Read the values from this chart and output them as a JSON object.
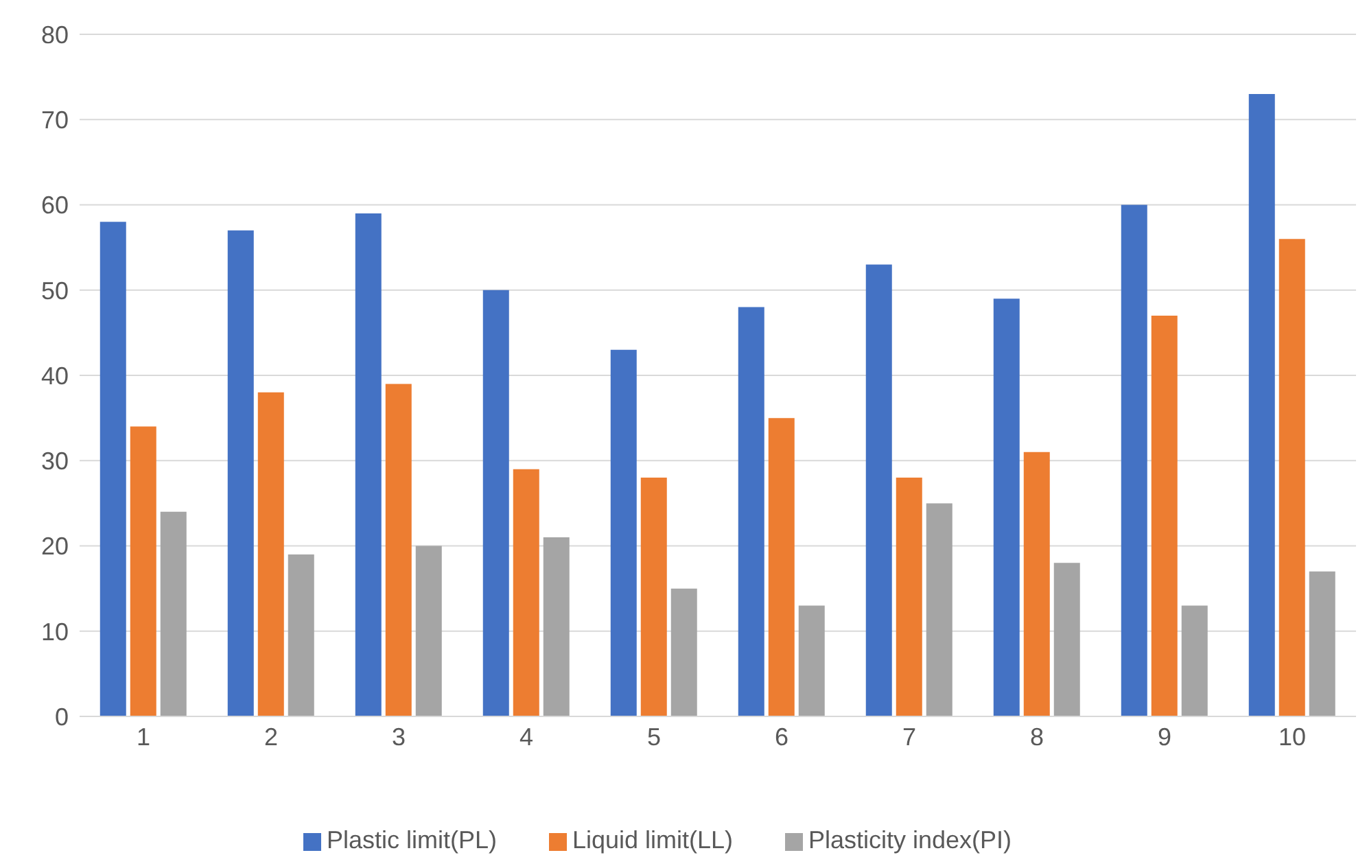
{
  "chart_data": {
    "type": "bar",
    "categories": [
      "1",
      "2",
      "3",
      "4",
      "5",
      "6",
      "7",
      "8",
      "9",
      "10"
    ],
    "series": [
      {
        "name": "Plastic limit(PL)",
        "color": "#4472c4",
        "values": [
          58,
          57,
          59,
          50,
          43,
          48,
          53,
          49,
          60,
          73
        ]
      },
      {
        "name": "Liquid limit(LL)",
        "color": "#ed7d31",
        "values": [
          34,
          38,
          39,
          29,
          28,
          35,
          28,
          31,
          47,
          56
        ]
      },
      {
        "name": "Plasticity index(PI)",
        "color": "#a5a5a5",
        "values": [
          24,
          19,
          20,
          21,
          15,
          13,
          25,
          18,
          13,
          17
        ]
      }
    ],
    "ylim": [
      0,
      80
    ],
    "yticks": [
      0,
      10,
      20,
      30,
      40,
      50,
      60,
      70,
      80
    ],
    "grid": "y",
    "legend": "bottom"
  }
}
